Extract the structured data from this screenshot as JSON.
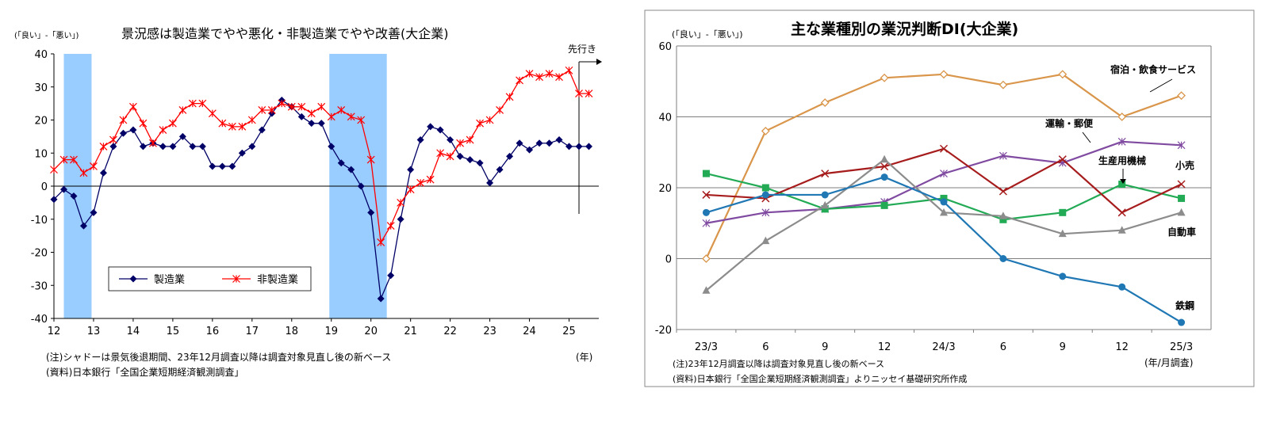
{
  "left": {
    "chart_data": {
      "type": "line",
      "title": "景況感は製造業でやや悪化・非製造業でやや改善(大企業)",
      "ylabel": "(「良い」-「悪い」)",
      "xlabel": "(年)",
      "ylim": [
        -40,
        40
      ],
      "yticks": [
        40,
        30,
        20,
        10,
        0,
        -10,
        -20,
        -30,
        -40
      ],
      "x_tick_labels": [
        "12",
        "13",
        "14",
        "15",
        "16",
        "17",
        "18",
        "19",
        "20",
        "21",
        "22",
        "23",
        "24",
        "25"
      ],
      "x_start": 2012.0,
      "x_end": 2025.75,
      "shaded_periods": [
        [
          2012.25,
          2012.95
        ],
        [
          2018.95,
          2020.4
        ]
      ],
      "annotation": "先行き",
      "legend_position": "bottom-left",
      "series": [
        {
          "name": "製造業",
          "color": "#000066",
          "marker": "diamond",
          "x": [
            2012.0,
            2012.25,
            2012.5,
            2012.75,
            2013.0,
            2013.25,
            2013.5,
            2013.75,
            2014.0,
            2014.25,
            2014.5,
            2014.75,
            2015.0,
            2015.25,
            2015.5,
            2015.75,
            2016.0,
            2016.25,
            2016.5,
            2016.75,
            2017.0,
            2017.25,
            2017.5,
            2017.75,
            2018.0,
            2018.25,
            2018.5,
            2018.75,
            2019.0,
            2019.25,
            2019.5,
            2019.75,
            2020.0,
            2020.25,
            2020.5,
            2020.75,
            2021.0,
            2021.25,
            2021.5,
            2021.75,
            2022.0,
            2022.25,
            2022.5,
            2022.75,
            2023.0,
            2023.25,
            2023.5,
            2023.75,
            2024.0,
            2024.25,
            2024.5,
            2024.75,
            2025.0,
            2025.25,
            2025.5
          ],
          "values": [
            -4,
            -1,
            -3,
            -12,
            -8,
            4,
            12,
            16,
            17,
            12,
            13,
            12,
            12,
            15,
            12,
            12,
            6,
            6,
            6,
            10,
            12,
            17,
            22,
            26,
            24,
            21,
            19,
            19,
            12,
            7,
            5,
            0,
            -8,
            -34,
            -27,
            -10,
            5,
            14,
            18,
            17,
            14,
            9,
            8,
            7,
            1,
            5,
            9,
            13,
            11,
            13,
            13,
            14,
            12,
            12,
            12
          ]
        },
        {
          "name": "非製造業",
          "color": "#ff0000",
          "marker": "asterisk",
          "x": [
            2012.0,
            2012.25,
            2012.5,
            2012.75,
            2013.0,
            2013.25,
            2013.5,
            2013.75,
            2014.0,
            2014.25,
            2014.5,
            2014.75,
            2015.0,
            2015.25,
            2015.5,
            2015.75,
            2016.0,
            2016.25,
            2016.5,
            2016.75,
            2017.0,
            2017.25,
            2017.5,
            2017.75,
            2018.0,
            2018.25,
            2018.5,
            2018.75,
            2019.0,
            2019.25,
            2019.5,
            2019.75,
            2020.0,
            2020.25,
            2020.5,
            2020.75,
            2021.0,
            2021.25,
            2021.5,
            2021.75,
            2022.0,
            2022.25,
            2022.5,
            2022.75,
            2023.0,
            2023.25,
            2023.5,
            2023.75,
            2024.0,
            2024.25,
            2024.5,
            2024.75,
            2025.0,
            2025.25,
            2025.5
          ],
          "values": [
            5,
            8,
            8,
            4,
            6,
            12,
            14,
            20,
            24,
            19,
            13,
            17,
            19,
            23,
            25,
            25,
            22,
            19,
            18,
            18,
            20,
            23,
            23,
            25,
            24,
            24,
            22,
            24,
            21,
            23,
            21,
            20,
            8,
            -17,
            -12,
            -5,
            -1,
            1,
            2,
            10,
            9,
            13,
            14,
            19,
            20,
            23,
            27,
            32,
            34,
            33,
            34,
            33,
            35,
            28,
            28
          ]
        }
      ]
    },
    "note": "(注)シャドーは景気後退期間、23年12月調査以降は調査対象見直し後の新ベース",
    "source": "(資料)日本銀行「全国企業短期経済観測調査」"
  },
  "right": {
    "chart_data": {
      "type": "line",
      "title": "主な業種別の業況判断DI(大企業)",
      "ylabel": "(「良い」-「悪い」)",
      "xlabel": "(年/月調査)",
      "ylim": [
        -20,
        60
      ],
      "yticks": [
        60,
        40,
        20,
        0,
        -20
      ],
      "grid": true,
      "categories": [
        "23/3",
        "6",
        "9",
        "12",
        "24/3",
        "6",
        "9",
        "12",
        "25/3"
      ],
      "series": [
        {
          "name": "宿泊・飲食サービス",
          "color": "#d9954a",
          "marker": "open-diamond",
          "values": [
            0,
            36,
            44,
            51,
            52,
            49,
            52,
            40,
            46
          ]
        },
        {
          "name": "運輸・郵便",
          "color": "#7f4aa0",
          "marker": "asterisk",
          "values": [
            10,
            13,
            14,
            16,
            24,
            29,
            27,
            33,
            32
          ]
        },
        {
          "name": "生産用機械",
          "color": "#22aa55",
          "marker": "square",
          "values": [
            24,
            20,
            14,
            15,
            17,
            11,
            13,
            21,
            17
          ]
        },
        {
          "name": "小売",
          "color": "#a61c1c",
          "marker": "x",
          "values": [
            18,
            17,
            24,
            26,
            31,
            19,
            28,
            13,
            21
          ]
        },
        {
          "name": "自動車",
          "color": "#8c8c8c",
          "marker": "triangle",
          "values": [
            -9,
            5,
            15,
            28,
            13,
            12,
            7,
            8,
            13
          ]
        },
        {
          "name": "鉄鋼",
          "color": "#1f77b4",
          "marker": "circle",
          "values": [
            13,
            18,
            18,
            23,
            16,
            0,
            -5,
            -8,
            -18
          ]
        }
      ]
    },
    "note": "(注)23年12月調査以降は調査対象見直し後の新ベース",
    "source": "(資料)日本銀行「全国企業短期経済観測調査」よりニッセイ基礎研究所作成"
  }
}
